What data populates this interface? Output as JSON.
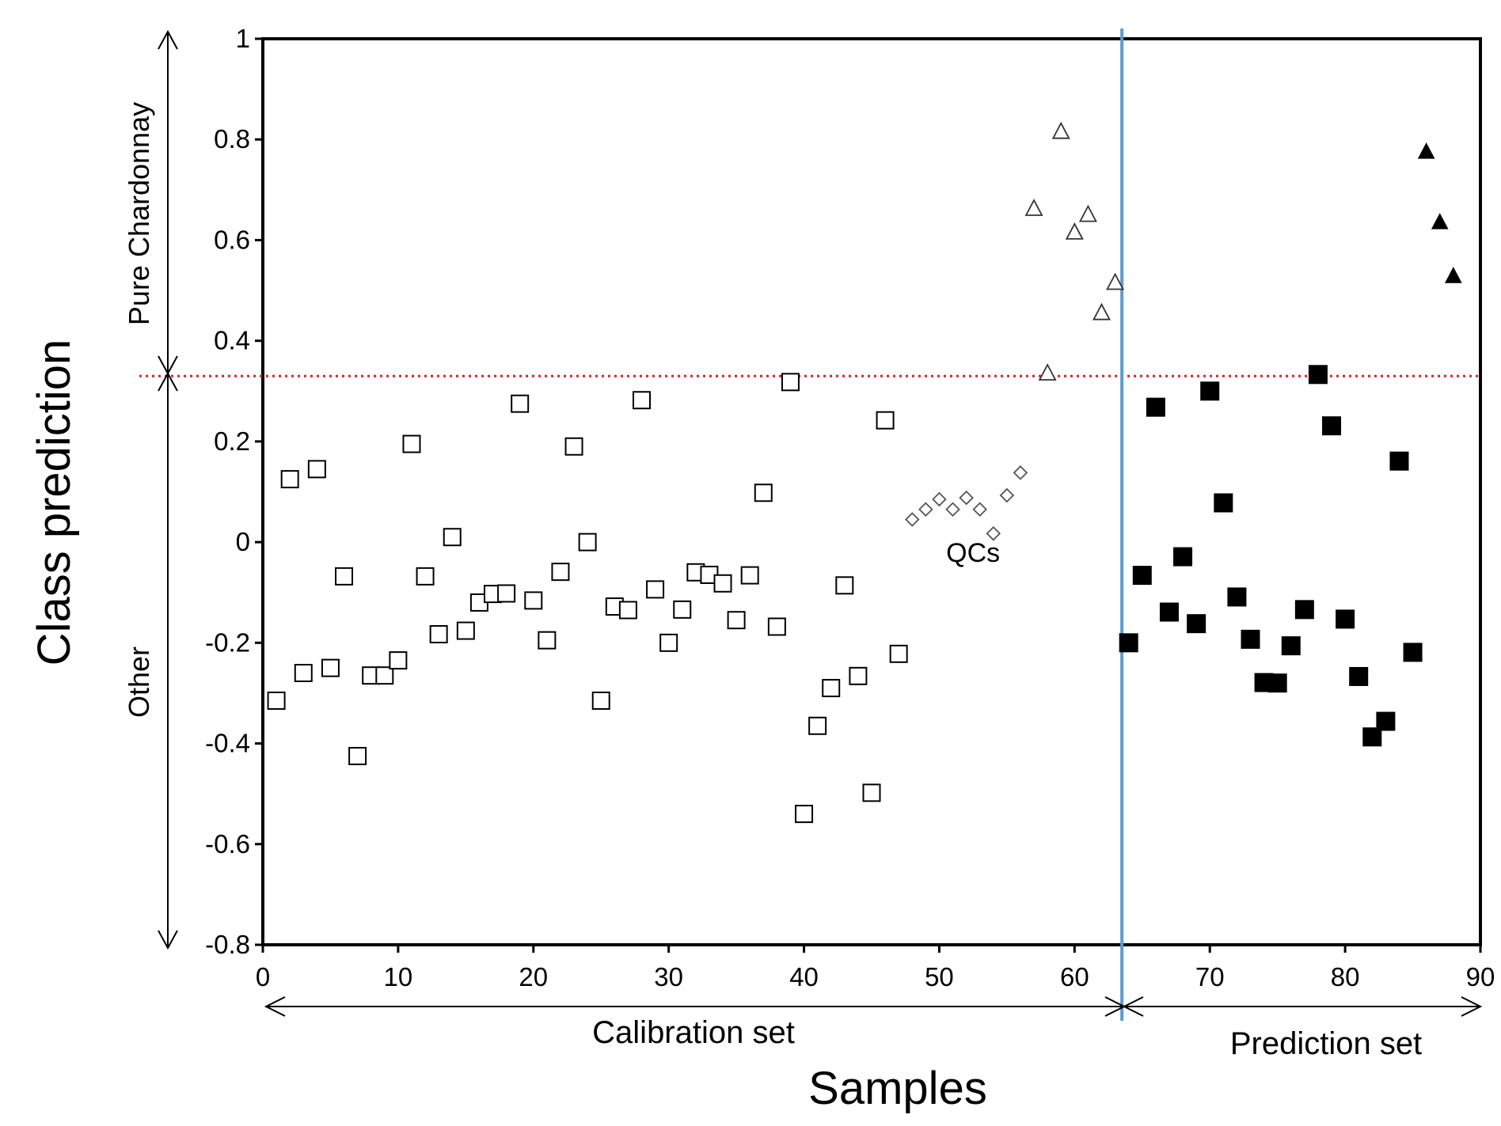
{
  "chart_data": {
    "type": "scatter",
    "title": "",
    "xlabel": "Samples",
    "ylabel": "Class prediction",
    "xlim": [
      0,
      90
    ],
    "ylim": [
      -0.8,
      1
    ],
    "x_ticks": [
      "0",
      "10",
      "20",
      "30",
      "40",
      "50",
      "60",
      "70",
      "80",
      "90"
    ],
    "y_ticks": [
      "1",
      "0.8",
      "0.6",
      "0.4",
      "0.2",
      "0",
      "-0.2",
      "-0.4",
      "-0.6",
      "-0.8"
    ],
    "grid": false,
    "threshold": 0.33,
    "split_x": 63.5,
    "side_labels": {
      "upper": "Pure Chardonnay",
      "lower": "Other"
    },
    "set_labels": {
      "calibration": "Calibration set",
      "prediction": "Prediction set"
    },
    "annotations": [
      {
        "text": "QCs",
        "x": 52.5,
        "y": -0.02
      }
    ],
    "series": [
      {
        "name": "Calibration - Other",
        "marker": "open-square",
        "points": [
          [
            1,
            -0.315
          ],
          [
            2,
            0.125
          ],
          [
            3,
            -0.26
          ],
          [
            4,
            0.145
          ],
          [
            5,
            -0.25
          ],
          [
            6,
            -0.068
          ],
          [
            7,
            -0.425
          ],
          [
            8,
            -0.265
          ],
          [
            9,
            -0.265
          ],
          [
            10,
            -0.235
          ],
          [
            11,
            0.195
          ],
          [
            12,
            -0.068
          ],
          [
            13,
            -0.183
          ],
          [
            14,
            0.01
          ],
          [
            15,
            -0.176
          ],
          [
            16,
            -0.12
          ],
          [
            17,
            -0.103
          ],
          [
            18,
            -0.102
          ],
          [
            19,
            0.275
          ],
          [
            20,
            -0.116
          ],
          [
            21,
            -0.195
          ],
          [
            22,
            -0.059
          ],
          [
            23,
            0.19
          ],
          [
            24,
            0.0
          ],
          [
            25,
            -0.315
          ],
          [
            26,
            -0.128
          ],
          [
            27,
            -0.135
          ],
          [
            28,
            0.282
          ],
          [
            29,
            -0.094
          ],
          [
            30,
            -0.2
          ],
          [
            31,
            -0.134
          ],
          [
            32,
            -0.06
          ],
          [
            33,
            -0.065
          ],
          [
            34,
            -0.082
          ],
          [
            35,
            -0.155
          ],
          [
            36,
            -0.066
          ],
          [
            37,
            0.098
          ],
          [
            38,
            -0.168
          ],
          [
            39,
            0.318
          ],
          [
            40,
            -0.54
          ],
          [
            41,
            -0.365
          ],
          [
            42,
            -0.29
          ],
          [
            43,
            -0.086
          ],
          [
            44,
            -0.266
          ],
          [
            45,
            -0.498
          ],
          [
            46,
            0.242
          ],
          [
            47,
            -0.222
          ]
        ]
      },
      {
        "name": "QCs",
        "marker": "open-diamond",
        "points": [
          [
            48,
            0.045
          ],
          [
            49,
            0.065
          ],
          [
            50,
            0.085
          ],
          [
            51,
            0.065
          ],
          [
            52,
            0.088
          ],
          [
            53,
            0.065
          ],
          [
            54,
            0.017
          ],
          [
            55,
            0.093
          ],
          [
            56,
            0.138
          ]
        ]
      },
      {
        "name": "Calibration - Pure Chardonnay",
        "marker": "open-triangle",
        "points": [
          [
            57,
            0.662
          ],
          [
            58,
            0.335
          ],
          [
            59,
            0.815
          ],
          [
            60,
            0.615
          ],
          [
            61,
            0.65
          ],
          [
            62,
            0.455
          ],
          [
            63,
            0.515
          ]
        ]
      },
      {
        "name": "Prediction - Other",
        "marker": "filled-square",
        "points": [
          [
            64,
            -0.2
          ],
          [
            65,
            -0.066
          ],
          [
            66,
            0.268
          ],
          [
            67,
            -0.139
          ],
          [
            68,
            -0.029
          ],
          [
            69,
            -0.162
          ],
          [
            70,
            0.3
          ],
          [
            71,
            0.078
          ],
          [
            72,
            -0.109
          ],
          [
            73,
            -0.193
          ],
          [
            74,
            -0.279
          ],
          [
            75,
            -0.28
          ],
          [
            76,
            -0.206
          ],
          [
            77,
            -0.134
          ],
          [
            78,
            0.333
          ],
          [
            79,
            0.231
          ],
          [
            80,
            -0.153
          ],
          [
            81,
            -0.267
          ],
          [
            82,
            -0.387
          ],
          [
            83,
            -0.356
          ],
          [
            84,
            0.161
          ],
          [
            85,
            -0.219
          ]
        ]
      },
      {
        "name": "Prediction - Pure Chardonnay",
        "marker": "filled-triangle",
        "points": [
          [
            86,
            0.775
          ],
          [
            87,
            0.635
          ],
          [
            88,
            0.528
          ]
        ]
      }
    ]
  }
}
